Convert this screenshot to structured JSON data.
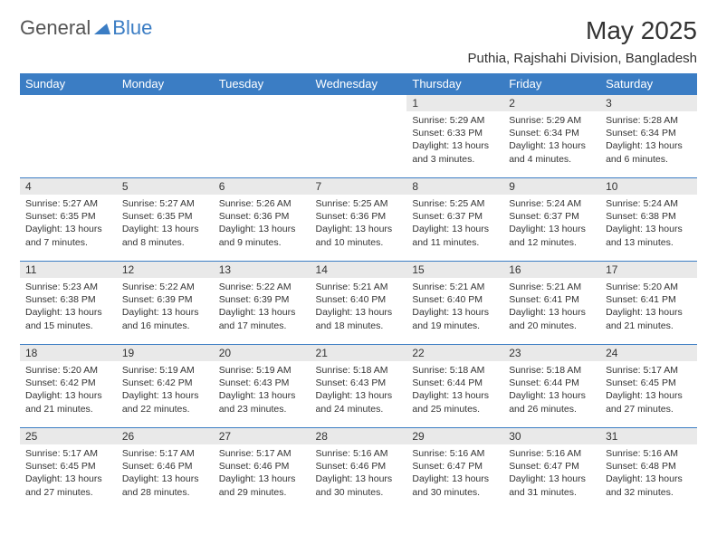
{
  "logo": {
    "part1": "General",
    "part2": "Blue"
  },
  "title": "May 2025",
  "location": "Puthia, Rajshahi Division, Bangladesh",
  "colors": {
    "header_bg": "#3b7dc4",
    "header_fg": "#ffffff",
    "daynum_bg": "#e9e9e9",
    "border": "#3b7dc4",
    "text": "#333333"
  },
  "day_headers": [
    "Sunday",
    "Monday",
    "Tuesday",
    "Wednesday",
    "Thursday",
    "Friday",
    "Saturday"
  ],
  "weeks": [
    [
      {
        "n": "",
        "sr": "",
        "ss": "",
        "dl1": "",
        "dl2": ""
      },
      {
        "n": "",
        "sr": "",
        "ss": "",
        "dl1": "",
        "dl2": ""
      },
      {
        "n": "",
        "sr": "",
        "ss": "",
        "dl1": "",
        "dl2": ""
      },
      {
        "n": "",
        "sr": "",
        "ss": "",
        "dl1": "",
        "dl2": ""
      },
      {
        "n": "1",
        "sr": "Sunrise: 5:29 AM",
        "ss": "Sunset: 6:33 PM",
        "dl1": "Daylight: 13 hours",
        "dl2": "and 3 minutes."
      },
      {
        "n": "2",
        "sr": "Sunrise: 5:29 AM",
        "ss": "Sunset: 6:34 PM",
        "dl1": "Daylight: 13 hours",
        "dl2": "and 4 minutes."
      },
      {
        "n": "3",
        "sr": "Sunrise: 5:28 AM",
        "ss": "Sunset: 6:34 PM",
        "dl1": "Daylight: 13 hours",
        "dl2": "and 6 minutes."
      }
    ],
    [
      {
        "n": "4",
        "sr": "Sunrise: 5:27 AM",
        "ss": "Sunset: 6:35 PM",
        "dl1": "Daylight: 13 hours",
        "dl2": "and 7 minutes."
      },
      {
        "n": "5",
        "sr": "Sunrise: 5:27 AM",
        "ss": "Sunset: 6:35 PM",
        "dl1": "Daylight: 13 hours",
        "dl2": "and 8 minutes."
      },
      {
        "n": "6",
        "sr": "Sunrise: 5:26 AM",
        "ss": "Sunset: 6:36 PM",
        "dl1": "Daylight: 13 hours",
        "dl2": "and 9 minutes."
      },
      {
        "n": "7",
        "sr": "Sunrise: 5:25 AM",
        "ss": "Sunset: 6:36 PM",
        "dl1": "Daylight: 13 hours",
        "dl2": "and 10 minutes."
      },
      {
        "n": "8",
        "sr": "Sunrise: 5:25 AM",
        "ss": "Sunset: 6:37 PM",
        "dl1": "Daylight: 13 hours",
        "dl2": "and 11 minutes."
      },
      {
        "n": "9",
        "sr": "Sunrise: 5:24 AM",
        "ss": "Sunset: 6:37 PM",
        "dl1": "Daylight: 13 hours",
        "dl2": "and 12 minutes."
      },
      {
        "n": "10",
        "sr": "Sunrise: 5:24 AM",
        "ss": "Sunset: 6:38 PM",
        "dl1": "Daylight: 13 hours",
        "dl2": "and 13 minutes."
      }
    ],
    [
      {
        "n": "11",
        "sr": "Sunrise: 5:23 AM",
        "ss": "Sunset: 6:38 PM",
        "dl1": "Daylight: 13 hours",
        "dl2": "and 15 minutes."
      },
      {
        "n": "12",
        "sr": "Sunrise: 5:22 AM",
        "ss": "Sunset: 6:39 PM",
        "dl1": "Daylight: 13 hours",
        "dl2": "and 16 minutes."
      },
      {
        "n": "13",
        "sr": "Sunrise: 5:22 AM",
        "ss": "Sunset: 6:39 PM",
        "dl1": "Daylight: 13 hours",
        "dl2": "and 17 minutes."
      },
      {
        "n": "14",
        "sr": "Sunrise: 5:21 AM",
        "ss": "Sunset: 6:40 PM",
        "dl1": "Daylight: 13 hours",
        "dl2": "and 18 minutes."
      },
      {
        "n": "15",
        "sr": "Sunrise: 5:21 AM",
        "ss": "Sunset: 6:40 PM",
        "dl1": "Daylight: 13 hours",
        "dl2": "and 19 minutes."
      },
      {
        "n": "16",
        "sr": "Sunrise: 5:21 AM",
        "ss": "Sunset: 6:41 PM",
        "dl1": "Daylight: 13 hours",
        "dl2": "and 20 minutes."
      },
      {
        "n": "17",
        "sr": "Sunrise: 5:20 AM",
        "ss": "Sunset: 6:41 PM",
        "dl1": "Daylight: 13 hours",
        "dl2": "and 21 minutes."
      }
    ],
    [
      {
        "n": "18",
        "sr": "Sunrise: 5:20 AM",
        "ss": "Sunset: 6:42 PM",
        "dl1": "Daylight: 13 hours",
        "dl2": "and 21 minutes."
      },
      {
        "n": "19",
        "sr": "Sunrise: 5:19 AM",
        "ss": "Sunset: 6:42 PM",
        "dl1": "Daylight: 13 hours",
        "dl2": "and 22 minutes."
      },
      {
        "n": "20",
        "sr": "Sunrise: 5:19 AM",
        "ss": "Sunset: 6:43 PM",
        "dl1": "Daylight: 13 hours",
        "dl2": "and 23 minutes."
      },
      {
        "n": "21",
        "sr": "Sunrise: 5:18 AM",
        "ss": "Sunset: 6:43 PM",
        "dl1": "Daylight: 13 hours",
        "dl2": "and 24 minutes."
      },
      {
        "n": "22",
        "sr": "Sunrise: 5:18 AM",
        "ss": "Sunset: 6:44 PM",
        "dl1": "Daylight: 13 hours",
        "dl2": "and 25 minutes."
      },
      {
        "n": "23",
        "sr": "Sunrise: 5:18 AM",
        "ss": "Sunset: 6:44 PM",
        "dl1": "Daylight: 13 hours",
        "dl2": "and 26 minutes."
      },
      {
        "n": "24",
        "sr": "Sunrise: 5:17 AM",
        "ss": "Sunset: 6:45 PM",
        "dl1": "Daylight: 13 hours",
        "dl2": "and 27 minutes."
      }
    ],
    [
      {
        "n": "25",
        "sr": "Sunrise: 5:17 AM",
        "ss": "Sunset: 6:45 PM",
        "dl1": "Daylight: 13 hours",
        "dl2": "and 27 minutes."
      },
      {
        "n": "26",
        "sr": "Sunrise: 5:17 AM",
        "ss": "Sunset: 6:46 PM",
        "dl1": "Daylight: 13 hours",
        "dl2": "and 28 minutes."
      },
      {
        "n": "27",
        "sr": "Sunrise: 5:17 AM",
        "ss": "Sunset: 6:46 PM",
        "dl1": "Daylight: 13 hours",
        "dl2": "and 29 minutes."
      },
      {
        "n": "28",
        "sr": "Sunrise: 5:16 AM",
        "ss": "Sunset: 6:46 PM",
        "dl1": "Daylight: 13 hours",
        "dl2": "and 30 minutes."
      },
      {
        "n": "29",
        "sr": "Sunrise: 5:16 AM",
        "ss": "Sunset: 6:47 PM",
        "dl1": "Daylight: 13 hours",
        "dl2": "and 30 minutes."
      },
      {
        "n": "30",
        "sr": "Sunrise: 5:16 AM",
        "ss": "Sunset: 6:47 PM",
        "dl1": "Daylight: 13 hours",
        "dl2": "and 31 minutes."
      },
      {
        "n": "31",
        "sr": "Sunrise: 5:16 AM",
        "ss": "Sunset: 6:48 PM",
        "dl1": "Daylight: 13 hours",
        "dl2": "and 32 minutes."
      }
    ]
  ]
}
